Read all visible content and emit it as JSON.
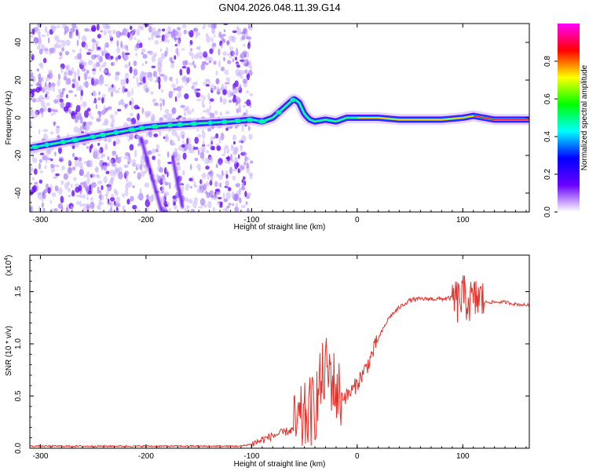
{
  "title": "GN04.2026.048.11.39.G14",
  "chart_data": [
    {
      "type": "heatmap",
      "xlabel": "Height of straight line (km)",
      "ylabel": "Frequency (Hz)",
      "xlim": [
        -310,
        163
      ],
      "ylim": [
        -50,
        50
      ],
      "xticks": [
        -300,
        -200,
        -100,
        0,
        100
      ],
      "xtick_labels": [
        "-300",
        "-200",
        "-100",
        "0",
        "100"
      ],
      "yticks": [
        -40,
        -20,
        0,
        20,
        40
      ],
      "ytick_labels": [
        "-40",
        "-20",
        "0",
        "20",
        "40"
      ],
      "colorbar": {
        "label": "Normalized spectral amplitude",
        "range": [
          0,
          1
        ],
        "ticks": [
          0.0,
          0.2,
          0.4,
          0.6,
          0.8
        ],
        "tick_labels": [
          "0.0",
          "0.2",
          "0.4",
          "0.6",
          "0.8"
        ],
        "colors": [
          "#ffffff",
          "#6a00ff",
          "#0000ff",
          "#00ffff",
          "#00ff00",
          "#ffff00",
          "#ff0000",
          "#ff00ff"
        ]
      },
      "ridge": {
        "x": [
          -310,
          -280,
          -250,
          -220,
          -200,
          -180,
          -150,
          -120,
          -100,
          -90,
          -80,
          -70,
          -60,
          -55,
          -50,
          -45,
          -40,
          -30,
          -20,
          -10,
          0,
          20,
          40,
          60,
          80,
          100,
          110,
          130,
          163
        ],
        "y": [
          -16,
          -13,
          -10,
          -7,
          -5,
          -4,
          -3,
          -2,
          -1,
          -2,
          0,
          5,
          10,
          8,
          2,
          -1,
          -2,
          -1,
          -2,
          0,
          0,
          0,
          -1,
          -1,
          -1,
          0,
          1,
          -1,
          -1
        ]
      },
      "secondary_streaks": [
        {
          "x": [
            -205,
            -195,
            -185
          ],
          "y": [
            -10,
            -30,
            -50
          ]
        },
        {
          "x": [
            -175,
            -170,
            -165
          ],
          "y": [
            -20,
            -35,
            -48
          ]
        }
      ],
      "grid": false
    },
    {
      "type": "line",
      "xlabel": "Height of straight line (km)",
      "ylabel": "SNR (10 * v/v)",
      "y_multiplier": "(x10",
      "y_multiplier_exp": "4",
      "y_multiplier_close": ")",
      "xlim": [
        -310,
        163
      ],
      "ylim": [
        0,
        1.85
      ],
      "xticks": [
        -300,
        -200,
        -100,
        0,
        100
      ],
      "xtick_labels": [
        "-300",
        "-200",
        "-100",
        "0",
        "100"
      ],
      "yticks": [
        0.0,
        0.5,
        1.0,
        1.5
      ],
      "ytick_labels": [
        "0.0",
        "0.5",
        "1.0",
        "1.5"
      ],
      "series": [
        {
          "color": "#e8302a",
          "x": [
            -310,
            -250,
            -200,
            -150,
            -110,
            -100,
            -90,
            -80,
            -70,
            -60,
            -50,
            -40,
            -35,
            -30,
            -25,
            -20,
            -15,
            -10,
            -5,
            0,
            10,
            20,
            30,
            40,
            50,
            60,
            70,
            80,
            90,
            95,
            100,
            105,
            110,
            115,
            120,
            130,
            140,
            150,
            163
          ],
          "y": [
            0.02,
            0.02,
            0.02,
            0.02,
            0.02,
            0.04,
            0.08,
            0.12,
            0.15,
            0.18,
            0.28,
            0.4,
            0.6,
            0.75,
            0.7,
            0.55,
            0.5,
            0.5,
            0.55,
            0.62,
            0.8,
            1.05,
            1.25,
            1.35,
            1.42,
            1.43,
            1.43,
            1.43,
            1.44,
            1.4,
            1.45,
            1.42,
            1.4,
            1.45,
            1.4,
            1.4,
            1.4,
            1.38,
            1.37
          ]
        }
      ],
      "grid": false
    }
  ]
}
